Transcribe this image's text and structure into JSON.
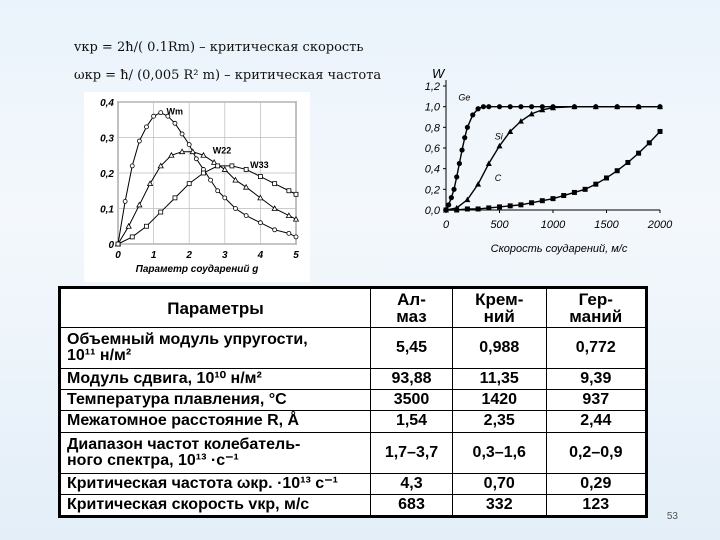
{
  "formulas": {
    "line1": "vкр = 2ħ/( 0.1Rm)      – критическая скорость",
    "line2": "ωкр = ħ/ (0,005 R² m) – критическая частота"
  },
  "chart_data": [
    {
      "type": "line",
      "xlabel": "Параметр соударений g",
      "x_ticks": [
        "0",
        "1",
        "2",
        "3",
        "4",
        "5"
      ],
      "y_ticks": [
        "0",
        "0,1",
        "0,2",
        "0,3",
        "0,4"
      ],
      "xlim": [
        0,
        5
      ],
      "ylim": [
        0,
        0.4
      ],
      "series": [
        {
          "name": "Wm",
          "x": [
            0,
            0.2,
            0.4,
            0.6,
            0.8,
            1.0,
            1.2,
            1.4,
            1.6,
            1.8,
            2.0,
            2.2,
            2.4,
            2.6,
            2.8,
            3.0,
            3.3,
            3.6,
            4.0,
            4.4,
            4.8,
            5.0
          ],
          "values": [
            0,
            0.12,
            0.22,
            0.29,
            0.33,
            0.36,
            0.37,
            0.36,
            0.34,
            0.31,
            0.28,
            0.24,
            0.21,
            0.18,
            0.15,
            0.13,
            0.1,
            0.08,
            0.06,
            0.04,
            0.03,
            0.02
          ]
        },
        {
          "name": "W22",
          "x": [
            0,
            0.3,
            0.6,
            0.9,
            1.2,
            1.5,
            1.8,
            2.1,
            2.4,
            2.7,
            3.0,
            3.3,
            3.6,
            4.0,
            4.4,
            4.8,
            5.0
          ],
          "values": [
            0,
            0.05,
            0.11,
            0.17,
            0.22,
            0.25,
            0.26,
            0.26,
            0.25,
            0.23,
            0.21,
            0.18,
            0.16,
            0.13,
            0.1,
            0.08,
            0.07
          ]
        },
        {
          "name": "W33",
          "x": [
            0,
            0.4,
            0.8,
            1.2,
            1.6,
            2.0,
            2.4,
            2.8,
            3.2,
            3.6,
            4.0,
            4.4,
            4.8,
            5.0
          ],
          "values": [
            0,
            0.02,
            0.05,
            0.09,
            0.13,
            0.17,
            0.2,
            0.22,
            0.22,
            0.21,
            0.19,
            0.17,
            0.15,
            0.14
          ]
        }
      ],
      "labels": [
        "Wm",
        "W22",
        "W33"
      ]
    },
    {
      "type": "line",
      "ylabel": "W",
      "xlabel": "Скорость соударений, м/с",
      "x_ticks": [
        "0",
        "500",
        "1000",
        "1500",
        "2000"
      ],
      "y_ticks": [
        "0,0",
        "0,2",
        "0,4",
        "0,6",
        "0,8",
        "1,0",
        "1,2"
      ],
      "xlim": [
        0,
        2000
      ],
      "ylim": [
        0,
        1.2
      ],
      "series": [
        {
          "name": "Ge",
          "x": [
            0,
            25,
            50,
            75,
            100,
            125,
            150,
            175,
            200,
            250,
            300,
            350,
            400,
            500,
            600,
            700,
            800,
            900,
            1000,
            1200,
            1400,
            1600,
            1800,
            2000
          ],
          "values": [
            0,
            0.05,
            0.12,
            0.2,
            0.32,
            0.45,
            0.58,
            0.7,
            0.8,
            0.92,
            0.98,
            1.0,
            1.0,
            1.0,
            1.0,
            1.0,
            1.0,
            1.0,
            1.0,
            1.0,
            1.0,
            1.0,
            1.0,
            1.0
          ]
        },
        {
          "name": "Si",
          "x": [
            0,
            100,
            200,
            300,
            400,
            500,
            600,
            700,
            800,
            900,
            1000,
            1200,
            1400,
            1600,
            1800,
            2000
          ],
          "values": [
            0,
            0.02,
            0.1,
            0.25,
            0.45,
            0.62,
            0.76,
            0.86,
            0.93,
            0.97,
            0.99,
            1.0,
            1.0,
            1.0,
            1.0,
            1.0
          ]
        },
        {
          "name": "C",
          "x": [
            0,
            100,
            200,
            300,
            400,
            500,
            600,
            700,
            800,
            900,
            1000,
            1100,
            1200,
            1300,
            1400,
            1500,
            1600,
            1700,
            1800,
            1900,
            2000
          ],
          "values": [
            0,
            0.0,
            0.01,
            0.01,
            0.02,
            0.03,
            0.04,
            0.05,
            0.07,
            0.09,
            0.11,
            0.14,
            0.17,
            0.2,
            0.25,
            0.31,
            0.38,
            0.46,
            0.55,
            0.65,
            0.76
          ]
        }
      ],
      "labels": [
        "Ge",
        "Si",
        "C"
      ]
    }
  ],
  "table": {
    "headers": [
      "Параметры",
      "Ал-\nмаз",
      "Крем-\nний",
      "Гер-\nманий"
    ],
    "rows": [
      {
        "param": "Объемный модуль упругости,\n10¹¹ н/м²",
        "values": [
          "5,45",
          "0,988",
          "0,772"
        ]
      },
      {
        "param": "Модуль сдвига, 10¹⁰ н/м²",
        "values": [
          "93,88",
          "11,35",
          "9,39"
        ]
      },
      {
        "param": "Температура плавления, °С",
        "values": [
          "3500",
          "1420",
          "937"
        ]
      },
      {
        "param": "Межатомное расстояние R, Å",
        "values": [
          "1,54",
          "2,35",
          "2,44"
        ]
      },
      {
        "param": "Диапазон частот колебатель-\nного спектра, 10¹³ ·с⁻¹",
        "values": [
          "1,7–3,7",
          "0,3–1,6",
          "0,2–0,9"
        ]
      },
      {
        "param": "Критическая частота ωкр. ·10¹³ с⁻¹",
        "values": [
          "4,3",
          "0,70",
          "0,29"
        ]
      },
      {
        "param": "Критическая скорость vкр, м/с",
        "values": [
          "683",
          "332",
          "123"
        ]
      }
    ]
  },
  "page_number": "53"
}
